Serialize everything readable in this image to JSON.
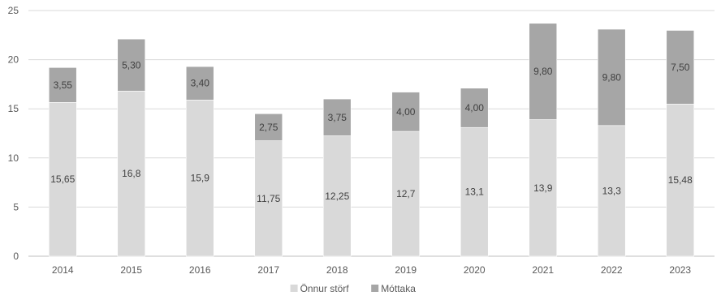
{
  "chart_data": {
    "type": "bar",
    "stacked": true,
    "categories": [
      "2014",
      "2015",
      "2016",
      "2017",
      "2018",
      "2019",
      "2020",
      "2021",
      "2022",
      "2023"
    ],
    "series": [
      {
        "name": "Önnur störf",
        "color": "#d9d9d9",
        "values": [
          15.65,
          16.8,
          15.9,
          11.75,
          12.25,
          12.7,
          13.1,
          13.9,
          13.3,
          15.48
        ],
        "labels": [
          "15,65",
          "16,8",
          "15,9",
          "11,75",
          "12,25",
          "12,7",
          "13,1",
          "13,9",
          "13,3",
          "15,48"
        ]
      },
      {
        "name": "Móttaka",
        "color": "#a6a6a6",
        "values": [
          3.55,
          5.3,
          3.4,
          2.75,
          3.75,
          4.0,
          4.0,
          9.8,
          9.8,
          7.5
        ],
        "labels": [
          "3,55",
          "5,30",
          "3,40",
          "2,75",
          "3,75",
          "4,00",
          "4,00",
          "9,80",
          "9,80",
          "7,50"
        ]
      }
    ],
    "title": "",
    "xlabel": "",
    "ylabel": "",
    "ylim": [
      0,
      25
    ],
    "yticks": [
      0,
      5,
      10,
      15,
      20,
      25
    ],
    "grid": true,
    "legend_position": "bottom-center"
  }
}
